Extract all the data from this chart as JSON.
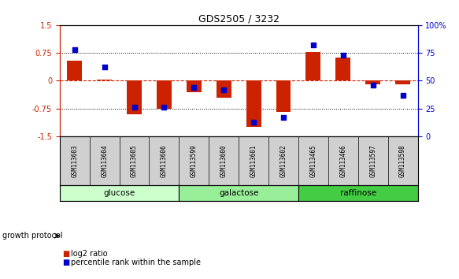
{
  "title": "GDS2505 / 3232",
  "samples": [
    "GSM113603",
    "GSM113604",
    "GSM113605",
    "GSM113606",
    "GSM113599",
    "GSM113600",
    "GSM113601",
    "GSM113602",
    "GSM113465",
    "GSM113466",
    "GSM113597",
    "GSM113598"
  ],
  "log2_ratio": [
    0.55,
    0.02,
    -0.9,
    -0.75,
    -0.3,
    -0.45,
    -1.25,
    -0.85,
    0.78,
    0.63,
    -0.1,
    -0.1
  ],
  "percentile_rank": [
    78,
    62,
    26,
    26,
    44,
    42,
    13,
    17,
    82,
    73,
    46,
    37
  ],
  "groups": [
    {
      "label": "glucose",
      "start": 0,
      "end": 4,
      "color": "#ccffcc"
    },
    {
      "label": "galactose",
      "start": 4,
      "end": 8,
      "color": "#99ee99"
    },
    {
      "label": "raffinose",
      "start": 8,
      "end": 12,
      "color": "#44cc44"
    }
  ],
  "bar_color": "#cc2200",
  "dot_color": "#0000cc",
  "ylim_left": [
    -1.5,
    1.5
  ],
  "ylim_right": [
    0,
    100
  ],
  "yticks_left": [
    -1.5,
    -0.75,
    0,
    0.75,
    1.5
  ],
  "yticks_right": [
    0,
    25,
    50,
    75,
    100
  ],
  "bar_width": 0.5,
  "dot_size": 22,
  "background_color": "#ffffff",
  "plot_bg": "#ffffff",
  "left_axis_color": "#cc2200",
  "right_axis_color": "#0000cc",
  "growth_protocol_text": "growth protocol",
  "legend_log2": "log2 ratio",
  "legend_pct": "percentile rank within the sample"
}
